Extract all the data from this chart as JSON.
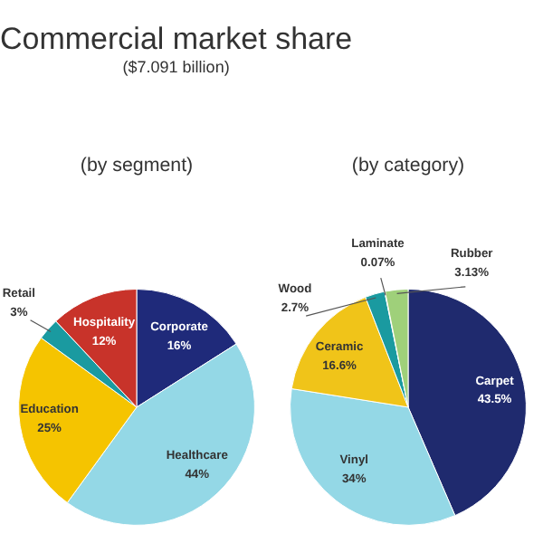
{
  "chart_data": [
    {
      "type": "pie",
      "title": "Commercial market share",
      "subtitle": "(by segment)",
      "annotations": [
        "($7.091 billion)"
      ],
      "categories": [
        "Corporate",
        "Healthcare",
        "Education",
        "Retail",
        "Hospitality"
      ],
      "values": [
        16,
        44,
        25,
        3,
        12
      ],
      "value_labels": [
        "16%",
        "44%",
        "25%",
        "3%",
        "12%"
      ],
      "colors": [
        "#1f2a7a",
        "#94d8e6",
        "#f5c400",
        "#1a9aa0",
        "#c8332a"
      ]
    },
    {
      "type": "pie",
      "subtitle": "(by category)",
      "categories": [
        "Carpet",
        "Vinyl",
        "Ceramic",
        "Wood",
        "Laminate",
        "Rubber"
      ],
      "values": [
        43.5,
        34,
        16.6,
        2.7,
        0.07,
        3.13
      ],
      "value_labels": [
        "43.5%",
        "34%",
        "16.6%",
        "2.7%",
        "0.07%",
        "3.13%"
      ],
      "colors": [
        "#1f2a6e",
        "#94d8e6",
        "#f0c419",
        "#1a9aa0",
        "#c8332a",
        "#9fd07a"
      ]
    }
  ]
}
